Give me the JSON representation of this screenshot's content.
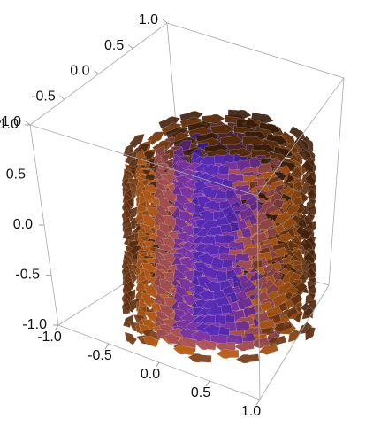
{
  "chart_data": {
    "type": "vector-field-3d",
    "title": "",
    "field": "helical swirl arrows around the vertical axis",
    "x_range": [
      -1,
      1
    ],
    "y_range": [
      -1,
      1
    ],
    "z_range": [
      -1,
      1
    ],
    "tick_values": [
      -1.0,
      -0.5,
      0.0,
      0.5,
      1.0
    ],
    "axes": {
      "back_top": [
        "-1.0",
        "-0.5",
        "0.0",
        "0.5",
        "1.0"
      ],
      "left_vertical": [
        "-1.0",
        "-0.5",
        "0.0",
        "0.5",
        "1.0"
      ],
      "front_bottom": [
        "-1.0",
        "-0.5",
        "0.0",
        "0.5",
        "1.0"
      ]
    },
    "layers": [
      -0.92,
      -0.82,
      -0.72,
      -0.62,
      -0.52,
      -0.42,
      -0.32,
      -0.22,
      -0.12,
      -0.02,
      0.08,
      0.18,
      0.28,
      0.38,
      0.48,
      0.58,
      0.68,
      0.78
    ],
    "rings": [
      0.25,
      0.45,
      0.65,
      0.85,
      1.0
    ],
    "colors": {
      "inner": "#2b1ec8",
      "mid": "#7d35a8",
      "outer": "#d36b1b",
      "edge": "#7a3a12"
    }
  }
}
